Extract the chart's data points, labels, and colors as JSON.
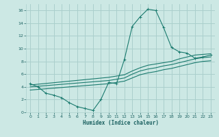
{
  "xlabel": "Humidex (Indice chaleur)",
  "background_color": "#cce8e4",
  "grid_color": "#aacfcc",
  "line_color": "#1a7a6e",
  "xlim": [
    -0.5,
    23.5
  ],
  "ylim": [
    0,
    17
  ],
  "xticks": [
    0,
    1,
    2,
    3,
    4,
    5,
    6,
    7,
    8,
    9,
    10,
    11,
    12,
    13,
    14,
    15,
    16,
    17,
    18,
    19,
    20,
    21,
    22,
    23
  ],
  "yticks": [
    0,
    2,
    4,
    6,
    8,
    10,
    12,
    14,
    16
  ],
  "series1_x": [
    0,
    1,
    2,
    3,
    4,
    5,
    6,
    7,
    8,
    9,
    10,
    11,
    12,
    13,
    14,
    15,
    16,
    17,
    18,
    19,
    20,
    21,
    22,
    23
  ],
  "series1_y": [
    4.5,
    4.0,
    3.0,
    2.7,
    2.3,
    1.5,
    0.9,
    0.6,
    0.3,
    2.0,
    4.7,
    4.5,
    8.3,
    13.5,
    15.0,
    16.2,
    16.0,
    13.3,
    10.2,
    9.5,
    9.3,
    8.5,
    8.7,
    9.0
  ],
  "series2_x": [
    0,
    10,
    11,
    12,
    13,
    14,
    15,
    16,
    17,
    18,
    19,
    20,
    21,
    22,
    23
  ],
  "series2_y": [
    4.3,
    5.5,
    5.7,
    5.9,
    6.5,
    7.0,
    7.4,
    7.6,
    7.8,
    8.0,
    8.4,
    8.7,
    9.0,
    9.1,
    9.2
  ],
  "series3_x": [
    0,
    10,
    11,
    12,
    13,
    14,
    15,
    16,
    17,
    18,
    19,
    20,
    21,
    22,
    23
  ],
  "series3_y": [
    4.0,
    5.0,
    5.2,
    5.4,
    6.0,
    6.5,
    6.8,
    7.0,
    7.3,
    7.5,
    7.8,
    8.1,
    8.4,
    8.6,
    8.7
  ],
  "series4_x": [
    0,
    10,
    11,
    12,
    13,
    14,
    15,
    16,
    17,
    18,
    19,
    20,
    21,
    22,
    23
  ],
  "series4_y": [
    3.5,
    4.5,
    4.7,
    4.9,
    5.4,
    5.9,
    6.2,
    6.4,
    6.7,
    6.9,
    7.2,
    7.5,
    7.8,
    8.0,
    8.1
  ]
}
